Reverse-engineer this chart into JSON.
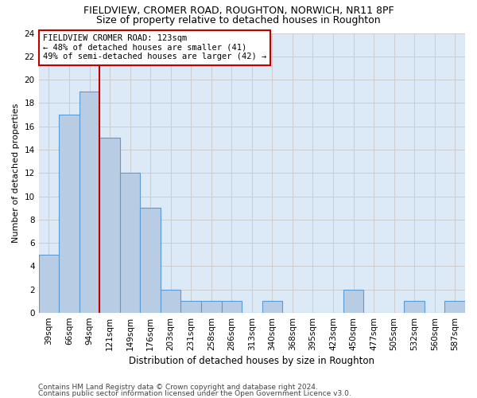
{
  "title1": "FIELDVIEW, CROMER ROAD, ROUGHTON, NORWICH, NR11 8PF",
  "title2": "Size of property relative to detached houses in Roughton",
  "xlabel": "Distribution of detached houses by size in Roughton",
  "ylabel": "Number of detached properties",
  "categories": [
    "39sqm",
    "66sqm",
    "94sqm",
    "121sqm",
    "149sqm",
    "176sqm",
    "203sqm",
    "231sqm",
    "258sqm",
    "286sqm",
    "313sqm",
    "340sqm",
    "368sqm",
    "395sqm",
    "423sqm",
    "450sqm",
    "477sqm",
    "505sqm",
    "532sqm",
    "560sqm",
    "587sqm"
  ],
  "values": [
    5,
    17,
    19,
    15,
    12,
    9,
    2,
    1,
    1,
    1,
    0,
    1,
    0,
    0,
    0,
    2,
    0,
    0,
    1,
    0,
    1
  ],
  "bar_color": "#b8cce4",
  "bar_edge_color": "#5b9bd5",
  "bar_linewidth": 0.8,
  "highlight_index": 3,
  "highlight_line_color": "#c00000",
  "annotation_text": "FIELDVIEW CROMER ROAD: 123sqm\n← 48% of detached houses are smaller (41)\n49% of semi-detached houses are larger (42) →",
  "annotation_box_color": "#ffffff",
  "annotation_box_edgecolor": "#c00000",
  "annotation_fontsize": 7.5,
  "ylim": [
    0,
    24
  ],
  "yticks": [
    0,
    2,
    4,
    6,
    8,
    10,
    12,
    14,
    16,
    18,
    20,
    22,
    24
  ],
  "grid_color": "#cccccc",
  "background_color": "#dce9f7",
  "footer1": "Contains HM Land Registry data © Crown copyright and database right 2024.",
  "footer2": "Contains public sector information licensed under the Open Government Licence v3.0.",
  "title1_fontsize": 9,
  "title2_fontsize": 9,
  "xlabel_fontsize": 8.5,
  "ylabel_fontsize": 8,
  "tick_fontsize": 7.5,
  "footer_fontsize": 6.5
}
